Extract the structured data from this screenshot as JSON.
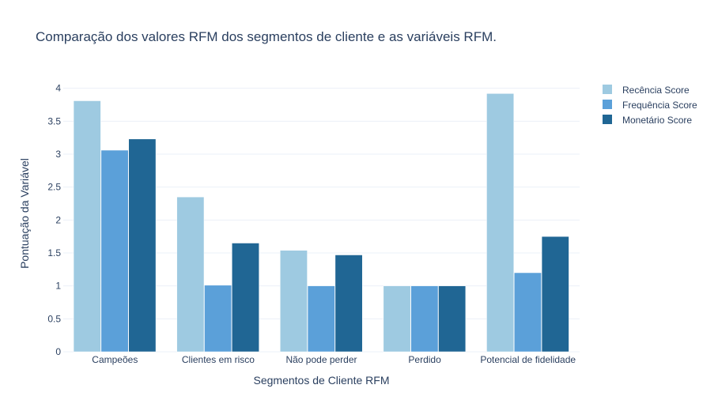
{
  "chart_data": {
    "type": "bar",
    "title": "Comparação dos valores RFM dos segmentos de cliente e as variáveis RFM.",
    "xlabel": "Segmentos de Cliente RFM",
    "ylabel": "Pontuação da Variável",
    "categories": [
      "Campeões",
      "Clientes em risco",
      "Não pode perder",
      "Perdido",
      "Potencial de fidelidade"
    ],
    "series": [
      {
        "name": "Recência Score",
        "color": "#9ecae1",
        "values": [
          3.81,
          2.35,
          1.54,
          1.0,
          3.92
        ]
      },
      {
        "name": "Frequência Score",
        "color": "#5ba0d9",
        "values": [
          3.06,
          1.01,
          1.0,
          1.0,
          1.2
        ]
      },
      {
        "name": "Monetário Score",
        "color": "#206694",
        "values": [
          3.23,
          1.65,
          1.47,
          1.0,
          1.75
        ]
      }
    ],
    "ylim": [
      0,
      4.2
    ],
    "yticks": [
      "0",
      "0.5",
      "1",
      "1.5",
      "2",
      "2.5",
      "3",
      "3.5",
      "4"
    ],
    "grid": true,
    "legend_position": "top-right"
  }
}
